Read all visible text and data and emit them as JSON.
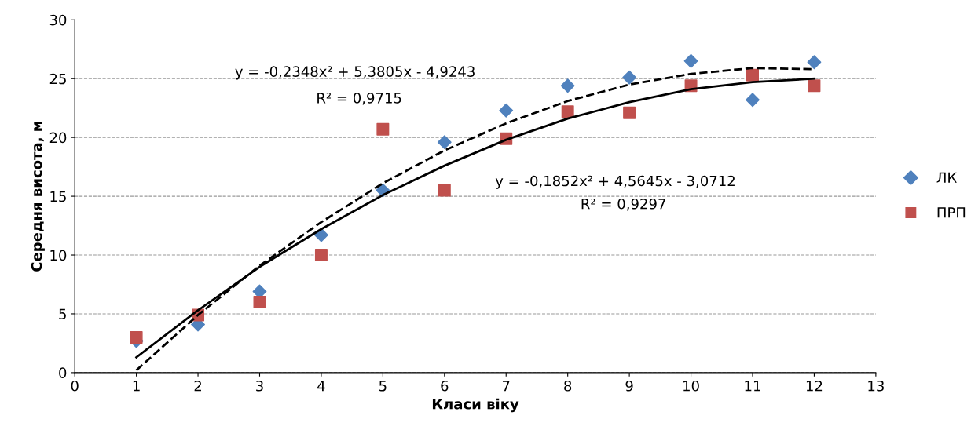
{
  "chart_data": {
    "type": "scatter",
    "xlabel": "Класи віку",
    "ylabel": "Середня висота, м",
    "x": [
      1,
      2,
      3,
      4,
      5,
      6,
      7,
      8,
      9,
      10,
      11,
      12
    ],
    "series": [
      {
        "name": "ЛК",
        "color": "#4f81bd",
        "marker": "diamond",
        "values": [
          2.7,
          4.1,
          6.9,
          11.7,
          15.5,
          19.6,
          22.3,
          24.4,
          25.1,
          26.5,
          23.2,
          26.4
        ]
      },
      {
        "name": "ПРП",
        "color": "#c0504d",
        "marker": "square",
        "values": [
          3.0,
          4.9,
          6.0,
          10.0,
          20.7,
          15.5,
          19.9,
          22.2,
          22.1,
          24.4,
          25.3,
          24.4
        ]
      },
      {
        "type": "line",
        "color": "#000000",
        "line_style": "dashed",
        "marker": "none",
        "x": [
          1,
          2,
          3,
          4,
          5,
          6,
          7,
          8,
          9,
          10,
          11,
          12
        ],
        "values": [
          0.2,
          4.9,
          9.1,
          12.8,
          16.1,
          18.9,
          21.2,
          23.1,
          24.5,
          25.4,
          25.9,
          25.8
        ]
      },
      {
        "type": "line",
        "color": "#000000",
        "line_style": "solid",
        "marker": "none",
        "x": [
          1,
          2,
          3,
          4,
          5,
          6,
          7,
          8,
          9,
          10,
          11,
          12
        ],
        "values": [
          1.3,
          5.3,
          9.0,
          12.2,
          15.1,
          17.6,
          19.8,
          21.6,
          23.0,
          24.1,
          24.7,
          25.0
        ]
      }
    ],
    "xlim": [
      0,
      13
    ],
    "xticks": [
      0,
      1,
      2,
      3,
      4,
      5,
      6,
      7,
      8,
      9,
      10,
      11,
      12,
      13
    ],
    "ylim": [
      0,
      30
    ],
    "yticks": [
      0,
      5,
      10,
      15,
      20,
      25,
      30
    ],
    "grid": "y",
    "legend": "right",
    "annotations": [
      "y = -0,2348x² + 5,3805x - 4,9243",
      "R² = 0,9715",
      "y = -0,1852x² + 4,5645x - 3,0712",
      "R² = 0,9297"
    ]
  }
}
